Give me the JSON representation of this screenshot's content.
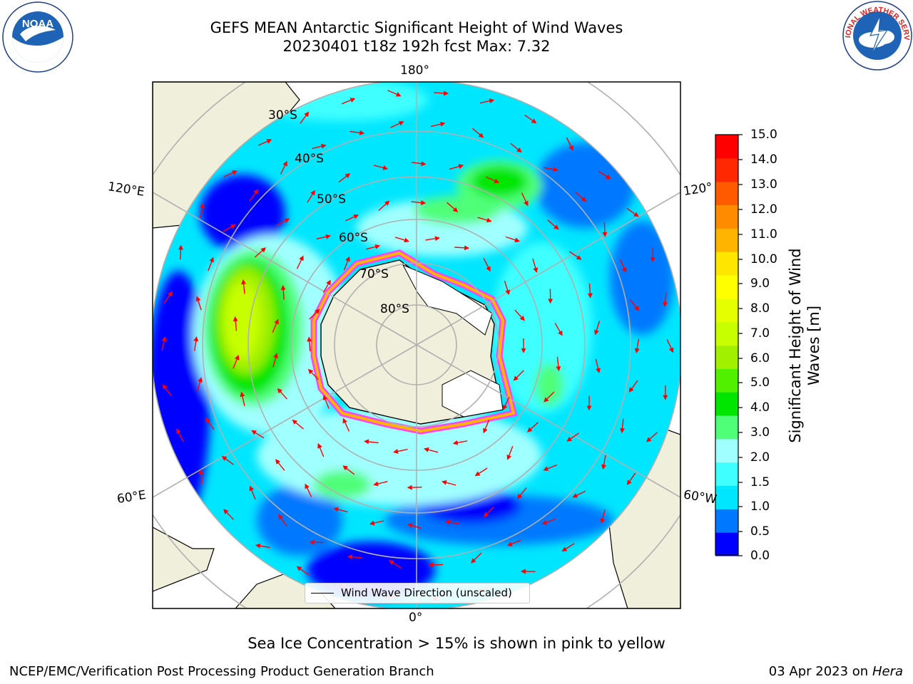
{
  "header": {
    "title_line1": "GEFS MEAN Antarctic Significant Height of Wind Waves",
    "title_line2": "20230401 t18z 192h fcst   Max: 7.32"
  },
  "logos": {
    "left": {
      "text": "NOAA",
      "ring_text": "NATIONAL OCEANIC AND ATMOSPHERIC ADMINISTRATION · U.S. DEPARTMENT OF COMMERCE"
    },
    "right": {
      "ring_text": "NATIONAL WEATHER SERVICE"
    }
  },
  "map": {
    "longitude_labels": [
      "180°",
      "120°E",
      "120°",
      "60°E",
      "60°W",
      "0°"
    ],
    "latitude_labels": [
      "30°S",
      "40°S",
      "50°S",
      "60°S",
      "70°S",
      "80°S"
    ],
    "legend_entry": "Wind Wave Direction (unscaled)",
    "arrow_color": "#ff0000",
    "land_color": "#efefdb",
    "ice_edge_colors": [
      "#ff40ff",
      "#ffb000",
      "#ffff00"
    ]
  },
  "colorbar": {
    "label": "Significant Height of Wind Waves [m]",
    "label_line1": "Significant Height of Wind",
    "label_line2": "Waves [m]",
    "ticks": [
      "15.0",
      "14.0",
      "13.0",
      "12.0",
      "11.0",
      "10.0",
      "9.0",
      "8.0",
      "7.0",
      "6.0",
      "5.0",
      "4.0",
      "3.0",
      "2.0",
      "1.5",
      "1.0",
      "0.5",
      "0.0"
    ],
    "colors_bottom_to_top": [
      "#0000ff",
      "#0078ff",
      "#00e6ff",
      "#40ffff",
      "#a0ffff",
      "#50ff78",
      "#00e600",
      "#50f000",
      "#a0f000",
      "#c8ff00",
      "#e6ff00",
      "#ffff00",
      "#ffe600",
      "#ffb400",
      "#ff8c00",
      "#ff5a00",
      "#ff2800",
      "#ff0000"
    ]
  },
  "caption": "Sea Ice Concentration > 15% is shown in pink to yellow",
  "footer": {
    "left": "NCEP/EMC/Verification Post Processing Product Generation Branch",
    "right_prefix": "03 Apr 2023 on ",
    "right_machine": "Hera"
  }
}
